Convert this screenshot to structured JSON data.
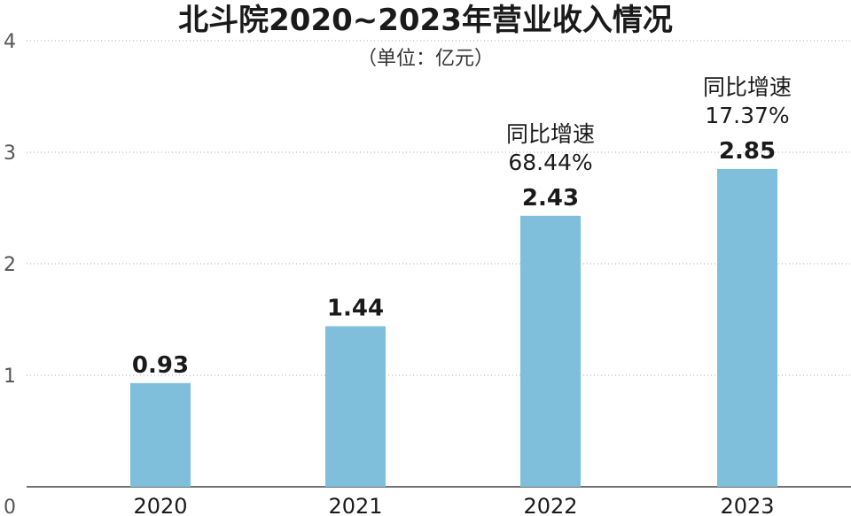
{
  "chart_data": {
    "type": "bar",
    "title": "北斗院2020~2023年营业收入情况",
    "unit": "（单位：亿元）",
    "categories": [
      "2020",
      "2021",
      "2022",
      "2023"
    ],
    "values": [
      0.93,
      1.44,
      2.43,
      2.85
    ],
    "value_labels": [
      "0.93",
      "1.44",
      "2.43",
      "2.85"
    ],
    "ylim": [
      0,
      4
    ],
    "yticks": [
      "0",
      "1",
      "2",
      "3",
      "4"
    ],
    "grid": "horizontal-dotted",
    "annotations": [
      {
        "category": "2022",
        "label": "同比增速",
        "value": "68.44%"
      },
      {
        "category": "2023",
        "label": "同比增速",
        "value": "17.37%"
      }
    ],
    "colors": {
      "bar": "#7fbfdc",
      "grid": "#aaaaaa",
      "text": "#1a1a1a",
      "axis": "#555555"
    }
  }
}
